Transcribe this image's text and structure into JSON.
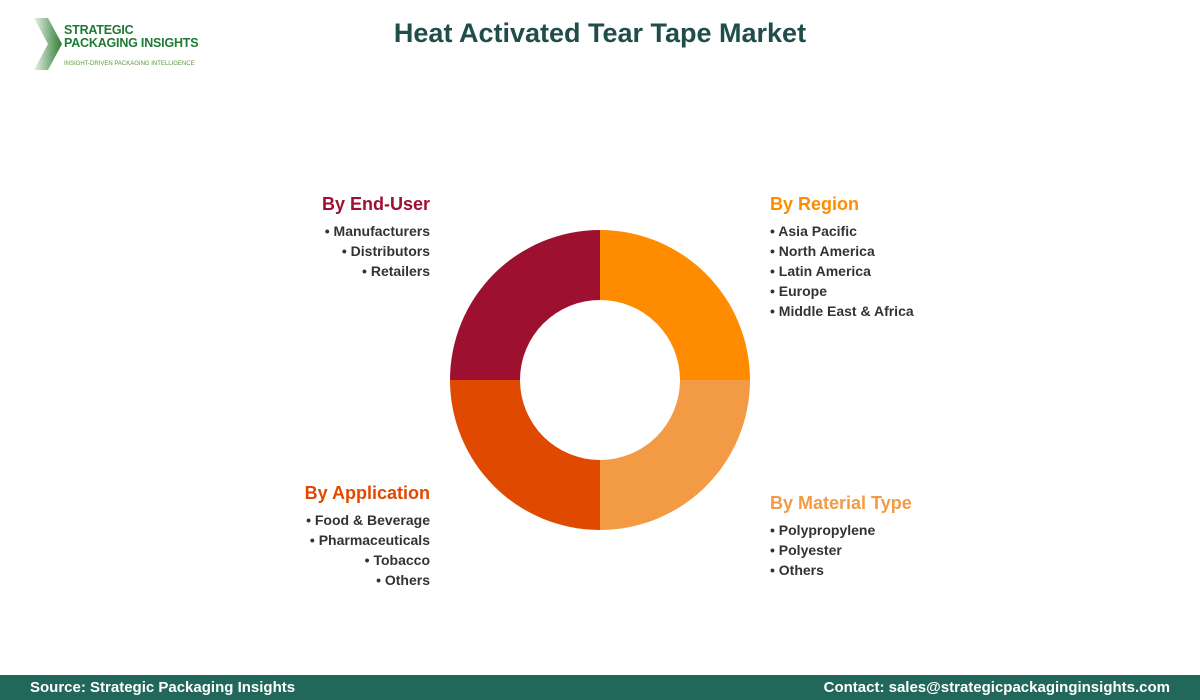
{
  "logo": {
    "line1": "STRATEGIC",
    "line2": "PACKAGING INSIGHTS",
    "tagline": "INSIGHT-DRIVEN PACKAGING INTELLIGENCE"
  },
  "title": "Heat Activated Tear Tape Market",
  "segments": {
    "end_user": {
      "title": "By End-User",
      "color": "#9e1030",
      "items": [
        "Manufacturers",
        "Distributors",
        "Retailers"
      ]
    },
    "region": {
      "title": "By Region",
      "color": "#ff8c00",
      "items": [
        "Asia Pacific",
        "North America",
        "Latin America",
        "Europe",
        "Middle East & Africa"
      ]
    },
    "application": {
      "title": "By Application",
      "color": "#e04a00",
      "items": [
        "Food & Beverage",
        "Pharmaceuticals",
        "Tobacco",
        "Others"
      ]
    },
    "material": {
      "title": "By Material Type",
      "color": "#f39a44",
      "items": [
        "Polypropylene",
        "Polyester",
        "Others"
      ]
    }
  },
  "footer": {
    "source": "Source: Strategic Packaging Insights",
    "contact": "Contact: sales@strategicpackaginginsights.com"
  }
}
